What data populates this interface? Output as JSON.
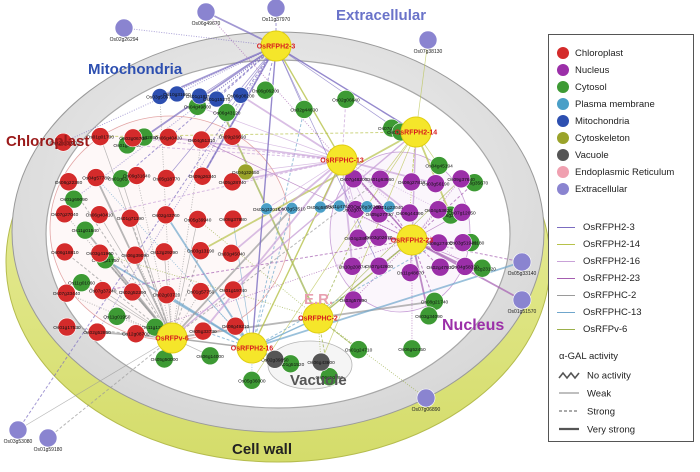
{
  "compartments": {
    "extracellular": "Extracellular",
    "mitochondria": "Mitochondria",
    "chloroplast": "Chloroplast",
    "nucleus": "Nucleus",
    "er": "E.R.",
    "vacuole": "Vacuole",
    "cell_wall": "Cell wall"
  },
  "colors": {
    "Chloroplast": "#d42b2b",
    "Nucleus": "#9b2fa8",
    "Cytosol": "#3d9a34",
    "Plasma membrane": "#4a9fc7",
    "Mitochondria": "#2d4fb0",
    "Cytoskeleton": "#9aa32a",
    "Vacuole": "#555555",
    "Endoplasmic Reticulum": "#f0a0b0",
    "Extracellular": "#8a84d0",
    "hub": "#f5e62a"
  },
  "legend": {
    "locations": [
      {
        "label": "Chloroplast",
        "color": "#d42b2b"
      },
      {
        "label": "Nucleus",
        "color": "#9b2fa8"
      },
      {
        "label": "Cytosol",
        "color": "#3d9a34"
      },
      {
        "label": "Plasma membrane",
        "color": "#4a9fc7"
      },
      {
        "label": "Mitochondria",
        "color": "#2d4fb0"
      },
      {
        "label": "Cytoskeleton",
        "color": "#9aa32a"
      },
      {
        "label": "Vacuole",
        "color": "#555555"
      },
      {
        "label": "Endoplasmic Reticulum",
        "color": "#f0a0b0"
      },
      {
        "label": "Extracellular",
        "color": "#8a84d0"
      }
    ],
    "baits": [
      {
        "label": "OsRFPH2-3",
        "color": "#7b6cc0"
      },
      {
        "label": "OsRFPH2-14",
        "color": "#b7c24a"
      },
      {
        "label": "OsRFPH2-16",
        "color": "#c9a2d8"
      },
      {
        "label": "OsRFPH2-23",
        "color": "#a45db0"
      },
      {
        "label": "OsRFPHC-2",
        "color": "#9a9a9a"
      },
      {
        "label": "OsRFPHC-13",
        "color": "#6fa6cc"
      },
      {
        "label": "OsRFPv-6",
        "color": "#9bb04a"
      }
    ],
    "activity_title": "α-GAL activity",
    "activity": [
      {
        "label": "No activity",
        "style": "zigzag"
      },
      {
        "label": "Weak",
        "style": "thin"
      },
      {
        "label": "Strong",
        "style": "dashed"
      },
      {
        "label": "Very strong",
        "style": "thick"
      }
    ]
  },
  "hubs": [
    {
      "id": "h3",
      "label": "OsRFPH2-3"
    },
    {
      "id": "h14",
      "label": "OsRFPH2-14"
    },
    {
      "id": "h13",
      "label": "OsRFPHC-13"
    },
    {
      "id": "h23",
      "label": "OsRFPH2-23"
    },
    {
      "id": "h6",
      "label": "OsRFPv-6"
    },
    {
      "id": "h16",
      "label": "OsRFPH2-16"
    },
    {
      "id": "h2",
      "label": "OsRFPHC-2"
    }
  ],
  "outer_nodes": [
    {
      "label": "Os11g37970",
      "type": "Extracellular"
    },
    {
      "label": "Os06g49670",
      "type": "Extracellular"
    },
    {
      "label": "Os02g26294",
      "type": "Extracellular"
    },
    {
      "label": "Os07g38130",
      "type": "Extracellular"
    },
    {
      "label": "Os05g33140",
      "type": "Extracellular"
    },
    {
      "label": "Os01g51570",
      "type": "Extracellular"
    },
    {
      "label": "Os07g06890",
      "type": "Extracellular"
    },
    {
      "label": "Os03g53080",
      "type": "Extracellular"
    },
    {
      "label": "Os01g59180",
      "type": "Extracellular"
    }
  ],
  "nodes": {
    "Cytosol": [
      {
        "label": "Os02g44630"
      },
      {
        "label": "Os02g06640"
      },
      {
        "label": "Os07g34520"
      },
      {
        "label": "Os01g16840"
      },
      {
        "label": "Os04g45194"
      },
      {
        "label": "Os06g35670"
      },
      {
        "label": "Os06g20600"
      },
      {
        "label": "Os06g21180"
      },
      {
        "label": "Os02g23120"
      },
      {
        "label": "Os08g21740"
      },
      {
        "label": "Os03g34090"
      },
      {
        "label": "Os06g52450"
      },
      {
        "label": "Os01g24710"
      },
      {
        "label": "Os06g10780"
      },
      {
        "label": "Os01g51520"
      },
      {
        "label": "Os05g36000"
      },
      {
        "label": "Os06g14000"
      },
      {
        "label": "Os05g50000"
      },
      {
        "label": "Os11g13630"
      },
      {
        "label": "Os11g01950"
      },
      {
        "label": "Os11g01060"
      },
      {
        "label": "Os06g21750"
      },
      {
        "label": "Os11g01540"
      },
      {
        "label": "Os01g69090"
      },
      {
        "label": "Os01g61020"
      },
      {
        "label": "Os01g46960"
      },
      {
        "label": "Os07g32880"
      },
      {
        "label": "Os04g49800"
      },
      {
        "label": "Os06g43120"
      },
      {
        "label": "Os06g06200"
      }
    ],
    "Mitochondria": [
      {
        "label": "Os03g50670"
      },
      {
        "label": "Os10g31660"
      },
      {
        "label": "Os01g18250"
      },
      {
        "label": "Os01g15270"
      },
      {
        "label": "Os06g08200"
      }
    ],
    "Chloroplast": [
      {
        "label": "Os02g13000"
      },
      {
        "label": "Os01g01790"
      },
      {
        "label": "Os03g06700"
      },
      {
        "label": "Os06g40420"
      },
      {
        "label": "Os04g51310"
      },
      {
        "label": "Os09g26690"
      },
      {
        "label": "Os06g22380"
      },
      {
        "label": "Os04g57780"
      },
      {
        "label": "Os09g31640"
      },
      {
        "label": "Os05g18770"
      },
      {
        "label": "Os09g26340"
      },
      {
        "label": "Os05g28740"
      },
      {
        "label": "Os07g27040"
      },
      {
        "label": "Os06g40410"
      },
      {
        "label": "Os01g71190"
      },
      {
        "label": "Os02g43760"
      },
      {
        "label": "Os05g39940"
      },
      {
        "label": "Os08g37980"
      },
      {
        "label": "Os06g18810"
      },
      {
        "label": "Os03g41960"
      },
      {
        "label": "Os06g39090"
      },
      {
        "label": "Os12g29290"
      },
      {
        "label": "Os03g13190"
      },
      {
        "label": "Os03g45040"
      },
      {
        "label": "Os07g33440"
      },
      {
        "label": "Os07g37240"
      },
      {
        "label": "Os02g52290"
      },
      {
        "label": "Os02g03720"
      },
      {
        "label": "Os01g57750"
      },
      {
        "label": "Os01g19740"
      },
      {
        "label": "Os01g17530"
      },
      {
        "label": "Os02g52850"
      },
      {
        "label": "Os12g08700"
      },
      {
        "label": "Os03g32240"
      },
      {
        "label": "Os05g33730"
      },
      {
        "label": "Os08g49210"
      }
    ],
    "Nucleus": [
      {
        "label": "Os07g48200"
      },
      {
        "label": "Os01g63560"
      },
      {
        "label": "Os08g27810"
      },
      {
        "label": "Os03g56190"
      },
      {
        "label": "Os09g37640"
      },
      {
        "label": "Os02g07800"
      },
      {
        "label": "Os05g27730"
      },
      {
        "label": "Os06g44390"
      },
      {
        "label": "Os04g53620"
      },
      {
        "label": "Os07g12050"
      },
      {
        "label": "Os04g38670"
      },
      {
        "label": "Os03g02670"
      },
      {
        "label": "Os07g42610"
      },
      {
        "label": "Os08g27400"
      },
      {
        "label": "Os03g51940"
      },
      {
        "label": "Os10g20874"
      },
      {
        "label": "Os07g42600"
      },
      {
        "label": "Os11g48670"
      },
      {
        "label": "Os02g47930"
      },
      {
        "label": "Os04g58320"
      },
      {
        "label": "Os03g57890"
      }
    ],
    "Plasma membrane": [
      {
        "label": "Os01g32010"
      },
      {
        "label": "Os03g53510"
      },
      {
        "label": "Os06g58220"
      },
      {
        "label": "Os11g47620"
      },
      {
        "label": "Os08g36300"
      },
      {
        "label": "Os01g23040"
      }
    ],
    "Vacuole": [
      {
        "label": "Os02g39850"
      },
      {
        "label": "Os06g43600"
      }
    ],
    "Cytoskeleton": [
      {
        "label": "Os04g32650"
      }
    ]
  }
}
